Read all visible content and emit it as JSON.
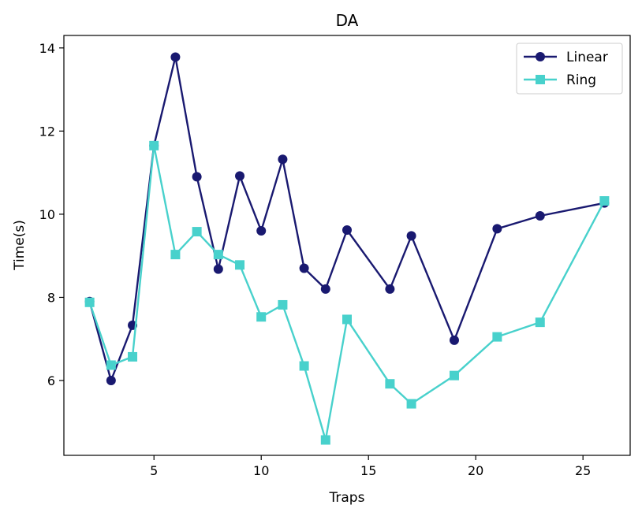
{
  "chart_data": {
    "type": "line",
    "title": "DA",
    "xlabel": "Traps",
    "ylabel": "Time(s)",
    "xlim": [
      0.8,
      27.2
    ],
    "ylim": [
      4.2,
      14.3
    ],
    "xticks": [
      5,
      10,
      15,
      20,
      25
    ],
    "yticks": [
      6,
      8,
      10,
      12,
      14
    ],
    "legend_position": "top-right",
    "series": [
      {
        "name": "Linear",
        "color": "#191970",
        "marker": "circle",
        "points": [
          [
            2,
            7.9
          ],
          [
            3,
            6.0
          ],
          [
            4,
            7.33
          ],
          [
            5,
            11.65
          ],
          [
            6,
            13.78
          ],
          [
            7,
            10.9
          ],
          [
            8,
            8.68
          ],
          [
            9,
            10.92
          ],
          [
            10,
            9.6
          ],
          [
            11,
            11.32
          ],
          [
            12,
            8.7
          ],
          [
            13,
            8.2
          ],
          [
            14,
            9.62
          ],
          [
            16,
            8.2
          ],
          [
            17,
            9.48
          ],
          [
            19,
            6.97
          ],
          [
            21,
            9.65
          ],
          [
            23,
            9.96
          ],
          [
            26,
            10.27
          ]
        ]
      },
      {
        "name": "Ring",
        "color": "#48D1CC",
        "marker": "square",
        "points": [
          [
            2,
            7.88
          ],
          [
            3,
            6.37
          ],
          [
            4,
            6.57
          ],
          [
            5,
            11.65
          ],
          [
            6,
            9.03
          ],
          [
            7,
            9.58
          ],
          [
            8,
            9.03
          ],
          [
            9,
            8.78
          ],
          [
            10,
            7.53
          ],
          [
            11,
            7.82
          ],
          [
            12,
            6.35
          ],
          [
            13,
            4.57
          ],
          [
            14,
            7.47
          ],
          [
            16,
            5.92
          ],
          [
            17,
            5.44
          ],
          [
            19,
            6.12
          ],
          [
            21,
            7.05
          ],
          [
            23,
            7.4
          ],
          [
            26,
            10.32
          ]
        ]
      }
    ]
  }
}
